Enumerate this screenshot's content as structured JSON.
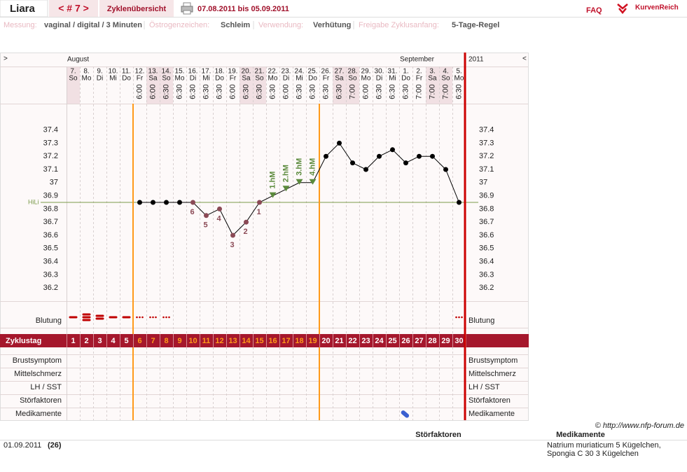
{
  "header": {
    "name": "Liara",
    "cycle_nav": "< # 7 >",
    "overview": "Zyklenübersicht",
    "period": "07.08.2011 bis 05.09.2011",
    "faq": "FAQ",
    "brand": "KurvenReich"
  },
  "info": [
    {
      "label": "Messung:",
      "value": "vaginal / digital / 3 Minuten"
    },
    {
      "label": "Östrogenzeichen:",
      "value": "Schleim"
    },
    {
      "label": "Verwendung:",
      "value": "Verhütung"
    },
    {
      "label": "Freigabe Zyklusanfang:",
      "value": "5-Tage-Regel"
    }
  ],
  "chart_data": {
    "type": "line",
    "nav_prev": ">",
    "nav_next": "<",
    "year": "2011",
    "months": [
      "August",
      null,
      null,
      null,
      null,
      null,
      null,
      null,
      null,
      null,
      null,
      null,
      null,
      null,
      null,
      null,
      null,
      null,
      null,
      null,
      null,
      null,
      null,
      null,
      null,
      "September",
      null,
      null,
      null,
      null
    ],
    "days": [
      "7.",
      "8.",
      "9.",
      "10.",
      "11.",
      "12.",
      "13.",
      "14.",
      "15.",
      "16.",
      "17.",
      "18.",
      "19.",
      "20.",
      "21.",
      "22.",
      "23.",
      "24.",
      "25.",
      "26.",
      "27.",
      "28.",
      "29.",
      "30.",
      "31.",
      "1.",
      "2.",
      "3.",
      "4.",
      "5."
    ],
    "weekdays": [
      "So",
      "Mo",
      "Di",
      "Mi",
      "Do",
      "Fr",
      "Sa",
      "So",
      "Mo",
      "Di",
      "Mi",
      "Do",
      "Fr",
      "Sa",
      "So",
      "Mo",
      "Di",
      "Mi",
      "Do",
      "Fr",
      "Sa",
      "So",
      "Mo",
      "Di",
      "Mi",
      "Do",
      "Fr",
      "Sa",
      "So",
      "Mo"
    ],
    "weekend": [
      true,
      false,
      false,
      false,
      false,
      false,
      true,
      true,
      false,
      false,
      false,
      false,
      false,
      true,
      true,
      false,
      false,
      false,
      false,
      false,
      true,
      true,
      false,
      false,
      false,
      false,
      false,
      true,
      true,
      false
    ],
    "weekend_color": "#f1e0e3",
    "times": [
      null,
      null,
      null,
      null,
      null,
      "6:00",
      "6:00",
      "6:30",
      "6:30",
      "6:30",
      "6:30",
      "6:30",
      "6:00",
      "6:30",
      "6:30",
      "6:30",
      "6:00",
      "6:30",
      "6:30",
      "6:30",
      "6:30",
      "7:00",
      "6:00",
      "6:30",
      "6:30",
      "6:30",
      "7:00",
      "7:00",
      "7:00",
      "6:30"
    ],
    "values": [
      null,
      null,
      null,
      null,
      null,
      36.85,
      36.85,
      36.85,
      36.85,
      36.85,
      36.75,
      36.8,
      36.6,
      36.7,
      36.85,
      36.9,
      36.95,
      37.0,
      37.0,
      37.2,
      37.3,
      37.15,
      37.1,
      37.2,
      37.25,
      37.15,
      37.2,
      37.2,
      37.1,
      36.85
    ],
    "point_colors": [
      null,
      null,
      null,
      null,
      null,
      "#000",
      "#000",
      "#000",
      "#000",
      "#8b4a56",
      "#8b4a56",
      "#8b4a56",
      "#8b4a56",
      "#8b4a56",
      "#8b4a56",
      "#000",
      "#000",
      "#000",
      "#000",
      "#000",
      "#000",
      "#000",
      "#000",
      "#000",
      "#000",
      "#000",
      "#000",
      "#000",
      "#000",
      "#000"
    ],
    "point_labels": [
      null,
      null,
      null,
      null,
      null,
      null,
      null,
      null,
      null,
      6,
      5,
      4,
      3,
      2,
      1,
      null,
      null,
      null,
      null,
      null,
      null,
      null,
      null,
      null,
      null,
      null,
      null,
      null,
      null,
      null
    ],
    "peak_labels": [
      null,
      null,
      null,
      null,
      null,
      null,
      null,
      null,
      null,
      null,
      null,
      null,
      null,
      null,
      null,
      "1.hM",
      "2.hM",
      "3.hM",
      "4.hM",
      null,
      null,
      null,
      null,
      null,
      null,
      null,
      null,
      null,
      null,
      null
    ],
    "peak_color": "#5b8a3c",
    "ylim": [
      36.1,
      37.6
    ],
    "yticks": [
      36.2,
      36.3,
      36.4,
      36.5,
      36.6,
      36.7,
      36.8,
      36.9,
      37,
      37.1,
      37.2,
      37.3,
      37.4
    ],
    "hili": {
      "label": "HiLi",
      "value": 36.85,
      "color": "#7a9a4a"
    },
    "bleeding": {
      "label": "Blutung",
      "color": "#c00000",
      "values": [
        1,
        3,
        2,
        1,
        1,
        0.5,
        0.5,
        0.5,
        null,
        null,
        null,
        null,
        null,
        null,
        null,
        null,
        null,
        null,
        null,
        null,
        null,
        null,
        null,
        null,
        null,
        null,
        null,
        null,
        null,
        0.5
      ]
    },
    "cycle_day": {
      "label": "Zyklustag",
      "values": [
        1,
        2,
        3,
        4,
        5,
        6,
        7,
        8,
        9,
        10,
        11,
        12,
        13,
        14,
        15,
        16,
        17,
        18,
        19,
        20,
        21,
        22,
        23,
        24,
        25,
        26,
        27,
        28,
        29,
        30
      ],
      "highlight": [
        false,
        false,
        false,
        false,
        false,
        true,
        true,
        true,
        true,
        true,
        true,
        true,
        true,
        true,
        true,
        true,
        true,
        true,
        true,
        false,
        false,
        false,
        false,
        false,
        false,
        false,
        false,
        false,
        false,
        false
      ],
      "highlight_color": "#ff9a1a"
    },
    "symptom_rows": [
      "Brustsymptom",
      "Mittelschmerz",
      "LH / SST",
      "Störfaktoren",
      "Medikamente"
    ]
  },
  "footer": {
    "source": "© http://www.nfp-forum.de",
    "columns": [
      "Störfaktoren",
      "Medikamente"
    ],
    "date": "01.09.2011",
    "cycle_day": "(26)",
    "medication": "Natrium muriaticum 5 Kügelchen, Spongia C 30 3 Kügelchen"
  }
}
